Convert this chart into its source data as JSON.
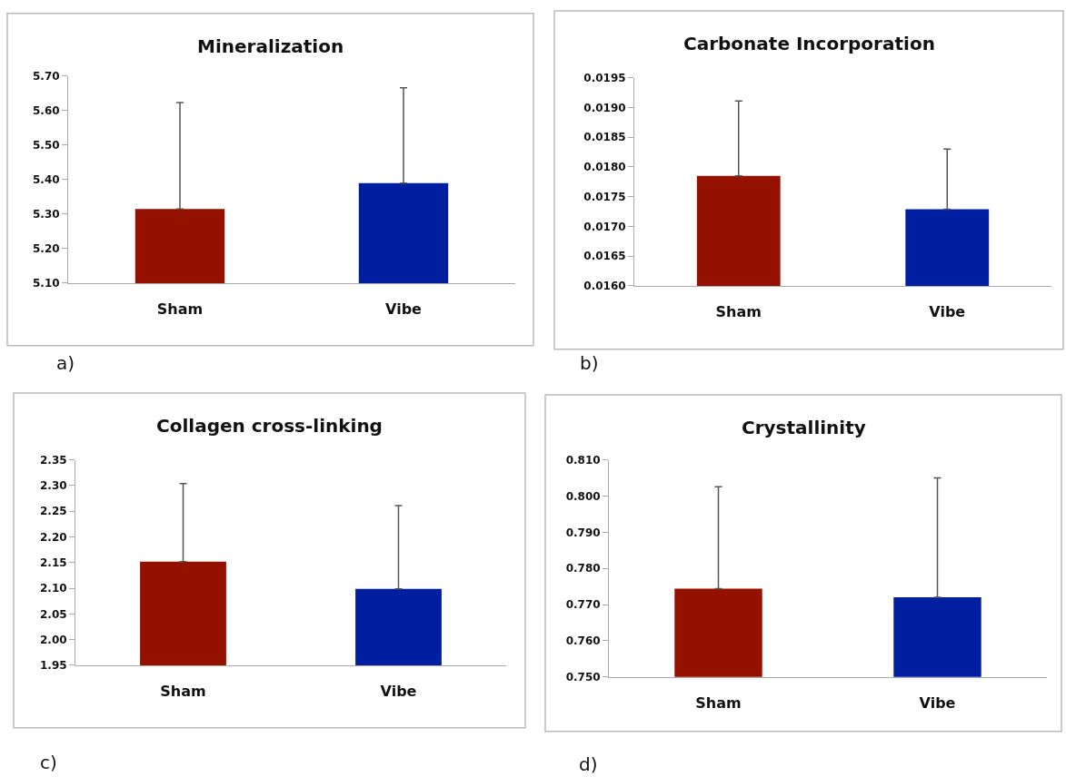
{
  "chart_data": [
    {
      "type": "bar",
      "title": "Mineralization",
      "categories": [
        "Sham",
        "Vibe"
      ],
      "colors": [
        "#941100",
        "#001ea0"
      ],
      "values": [
        5.315,
        5.39
      ],
      "errors": [
        [
          5.315,
          5.623
        ],
        [
          5.39,
          5.666
        ]
      ],
      "ylim": [
        5.1,
        5.7
      ],
      "yticks": [
        {
          "value": 5.1,
          "label": "5.10"
        },
        {
          "value": 5.2,
          "label": "5.20"
        },
        {
          "value": 5.3,
          "label": "5.30"
        },
        {
          "value": 5.4,
          "label": "5.40"
        },
        {
          "value": 5.5,
          "label": "5.50"
        },
        {
          "value": 5.6,
          "label": "5.60"
        },
        {
          "value": 5.7,
          "label": "5.70"
        }
      ],
      "annotations": [
        "a)"
      ]
    },
    {
      "type": "bar",
      "title": "Carbonate Incorporation",
      "categories": [
        "Sham",
        "Vibe"
      ],
      "colors": [
        "#941100",
        "#001ea0"
      ],
      "values": [
        0.01785,
        0.01729
      ],
      "errors": [
        [
          0.01785,
          0.01911
        ],
        [
          0.01729,
          0.0183
        ]
      ],
      "ylim": [
        0.016,
        0.0195
      ],
      "yticks": [
        {
          "value": 0.016,
          "label": "0.0160"
        },
        {
          "value": 0.0165,
          "label": "0.0165"
        },
        {
          "value": 0.017,
          "label": "0.0170"
        },
        {
          "value": 0.0175,
          "label": "0.0175"
        },
        {
          "value": 0.018,
          "label": "0.0180"
        },
        {
          "value": 0.0185,
          "label": "0.0185"
        },
        {
          "value": 0.019,
          "label": "0.0190"
        },
        {
          "value": 0.0195,
          "label": "0.0195"
        }
      ],
      "annotations": [
        "b)"
      ]
    },
    {
      "type": "bar",
      "title": "Collagen cross-linking",
      "categories": [
        "Sham",
        "Vibe"
      ],
      "colors": [
        "#941100",
        "#001ea0"
      ],
      "values": [
        2.152,
        2.099
      ],
      "errors": [
        [
          2.152,
          2.304
        ],
        [
          2.099,
          2.261
        ]
      ],
      "ylim": [
        1.95,
        2.35
      ],
      "yticks": [
        1.95,
        {
          "value": 2.0,
          "label": "2.00"
        },
        2.05,
        {
          "value": 2.1,
          "label": "2.10"
        },
        2.15,
        {
          "value": 2.2,
          "label": "2.20"
        },
        2.25,
        {
          "value": 2.3,
          "label": "2.30"
        },
        2.35
      ],
      "annotations": [
        "c)"
      ]
    },
    {
      "type": "bar",
      "title": "Crystallinity",
      "categories": [
        "Sham",
        "Vibe"
      ],
      "colors": [
        "#941100",
        "#001ea0"
      ],
      "values": [
        0.7744,
        0.772
      ],
      "errors": [
        [
          0.7744,
          0.8026
        ],
        [
          0.772,
          0.805
        ]
      ],
      "ylim": [
        0.75,
        0.81
      ],
      "yticks": [
        {
          "value": 0.75,
          "label": "0.750"
        },
        {
          "value": 0.76,
          "label": "0.760"
        },
        {
          "value": 0.77,
          "label": "0.770"
        },
        {
          "value": 0.78,
          "label": "0.780"
        },
        {
          "value": 0.79,
          "label": "0.790"
        },
        {
          "value": 0.8,
          "label": "0.800"
        },
        {
          "value": 0.81,
          "label": "0.810"
        }
      ],
      "annotations": [
        "d)"
      ]
    }
  ]
}
